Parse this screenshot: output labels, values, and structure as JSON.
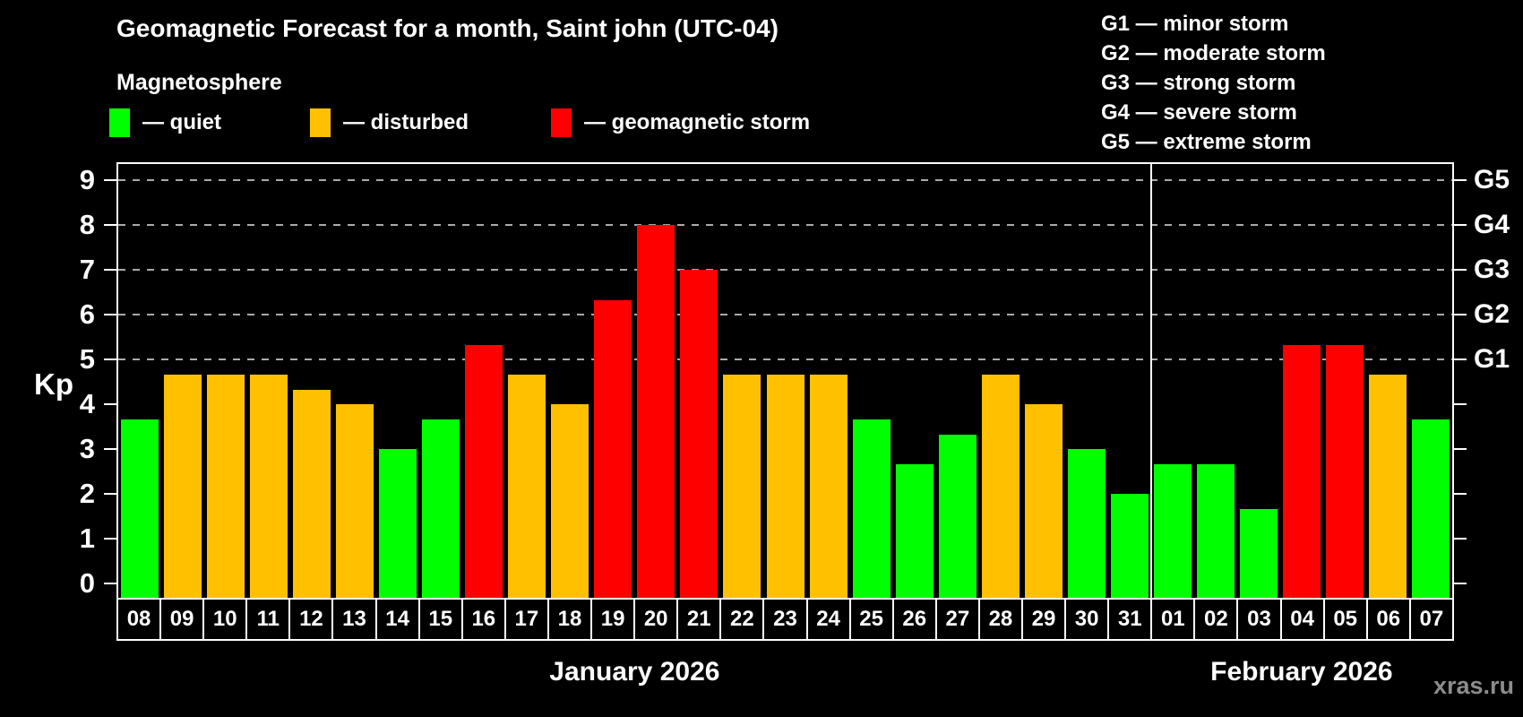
{
  "header": {
    "title": "Geomagnetic Forecast for a month, Saint john (UTC-04)",
    "subtitle": "Magnetosphere"
  },
  "colors": {
    "quiet": "#00FF00",
    "disturbed": "#FFC000",
    "storm": "#FF0000",
    "grid": "#AAAAAA",
    "axis": "#FFFFFF",
    "watermark": "#8C8C8C"
  },
  "legend": {
    "items": [
      {
        "swatch": "quiet",
        "label": "— quiet"
      },
      {
        "swatch": "disturbed",
        "label": "— disturbed"
      },
      {
        "swatch": "storm",
        "label": "— geomagnetic storm"
      }
    ]
  },
  "g_legend": {
    "items": [
      "G1 — minor storm",
      "G2 — moderate storm",
      "G3 — strong storm",
      "G4 — severe storm",
      "G5 — extreme storm"
    ]
  },
  "watermark": "xras.ru",
  "chart_data": {
    "type": "bar",
    "title": "Geomagnetic Forecast for a month, Saint john (UTC-04)",
    "ylabel": "Kp",
    "ylim": [
      0,
      9
    ],
    "y_ticks": [
      0,
      1,
      2,
      3,
      4,
      5,
      6,
      7,
      8,
      9
    ],
    "gridlines_at": [
      5,
      6,
      7,
      8,
      9
    ],
    "grid": "dashed",
    "right_axis_labels": [
      {
        "value": 5,
        "label": "G1"
      },
      {
        "value": 6,
        "label": "G2"
      },
      {
        "value": 7,
        "label": "G3"
      },
      {
        "value": 8,
        "label": "G4"
      },
      {
        "value": 9,
        "label": "G5"
      }
    ],
    "color_rules": {
      "disturbed_from": 4,
      "storm_from": 5
    },
    "months": [
      {
        "label": "January 2026",
        "days": [
          "08",
          "09",
          "10",
          "11",
          "12",
          "13",
          "14",
          "15",
          "16",
          "17",
          "18",
          "19",
          "20",
          "21",
          "22",
          "23",
          "24",
          "25",
          "26",
          "27",
          "28",
          "29",
          "30",
          "31"
        ],
        "values": [
          3.67,
          4.67,
          4.67,
          4.67,
          4.33,
          4,
          3,
          3.67,
          5.33,
          4.67,
          4,
          6.33,
          8,
          7,
          4.67,
          4.67,
          4.67,
          3.67,
          2.67,
          3.33,
          4.67,
          4,
          3,
          2
        ]
      },
      {
        "label": "February 2026",
        "days": [
          "01",
          "02",
          "03",
          "04",
          "05",
          "06",
          "07"
        ],
        "values": [
          2.67,
          2.67,
          1.67,
          5.33,
          5.33,
          4.67,
          3.67
        ]
      }
    ]
  }
}
